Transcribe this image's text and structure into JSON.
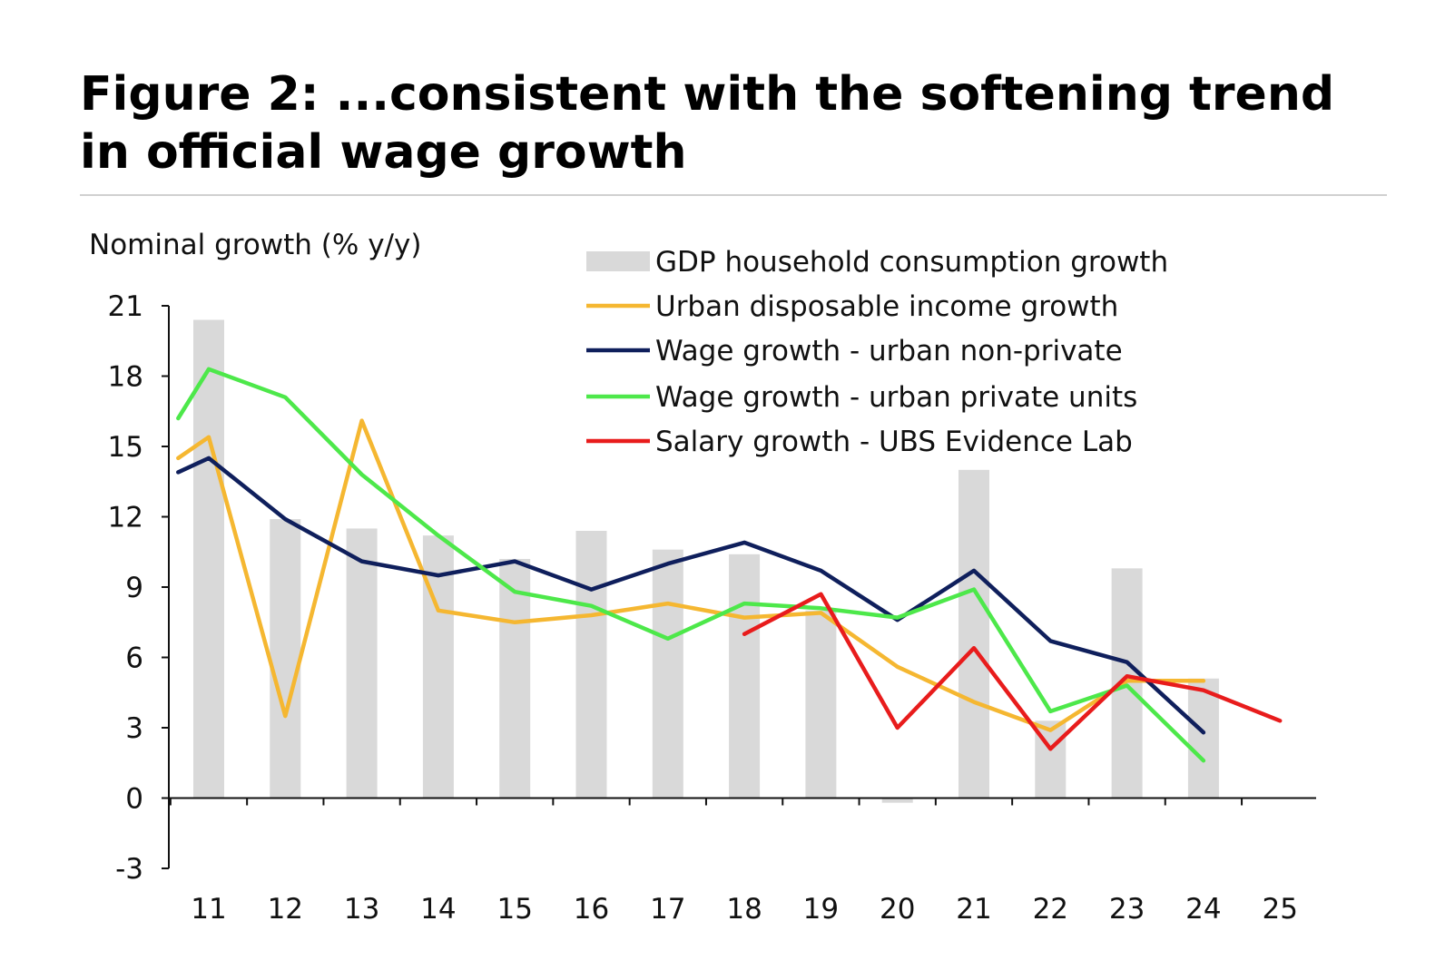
{
  "figure": {
    "title": "Figure 2: ...consistent with the softening trend in official wage growth"
  },
  "chart_data": {
    "type": "bar+line",
    "ylabel": "Nominal growth (% y/y)",
    "xlabel": "",
    "ylim": [
      -3,
      21
    ],
    "yticks": [
      -3,
      0,
      3,
      6,
      9,
      12,
      15,
      18,
      21
    ],
    "categories": [
      "11",
      "12",
      "13",
      "14",
      "15",
      "16",
      "17",
      "18",
      "19",
      "20",
      "21",
      "22",
      "23",
      "24",
      "25"
    ],
    "grid": false,
    "legend_position": "top-right",
    "bars": {
      "name": "GDP household consumption growth",
      "color": "#d9d9d9",
      "values": [
        20.4,
        11.9,
        11.5,
        11.2,
        10.2,
        11.4,
        10.6,
        10.4,
        8.0,
        -0.2,
        14.0,
        3.3,
        9.8,
        5.1,
        null
      ]
    },
    "series": [
      {
        "name": "Urban disposable income growth",
        "color": "#f5b731",
        "x": [
          10.6,
          11,
          12,
          13,
          14,
          15,
          16,
          17,
          18,
          19,
          20,
          21,
          22,
          23,
          24
        ],
        "values": [
          14.5,
          15.4,
          3.5,
          16.1,
          8.0,
          7.5,
          7.8,
          8.3,
          7.7,
          7.9,
          5.6,
          4.1,
          2.9,
          5.0,
          5.0
        ]
      },
      {
        "name": "Wage growth - urban non-private",
        "color": "#0f1f5c",
        "x": [
          10.6,
          11,
          12,
          13,
          14,
          15,
          16,
          17,
          18,
          19,
          20,
          21,
          22,
          23,
          24
        ],
        "values": [
          13.9,
          14.5,
          11.9,
          10.1,
          9.5,
          10.1,
          8.9,
          10.0,
          10.9,
          9.7,
          7.6,
          9.7,
          6.7,
          5.8,
          2.8
        ]
      },
      {
        "name": "Wage growth - urban private units",
        "color": "#4de84a",
        "x": [
          10.6,
          11,
          12,
          13,
          14,
          15,
          16,
          17,
          18,
          19,
          20,
          21,
          22,
          23,
          24
        ],
        "values": [
          16.2,
          18.3,
          17.1,
          13.8,
          11.2,
          8.8,
          8.2,
          6.8,
          8.3,
          8.1,
          7.7,
          8.9,
          3.7,
          4.8,
          1.6
        ]
      },
      {
        "name": "Salary growth - UBS Evidence Lab",
        "color": "#e81c1c",
        "x": [
          18,
          19,
          20,
          21,
          22,
          23,
          24,
          25
        ],
        "values": [
          7.0,
          8.7,
          3.0,
          6.4,
          2.1,
          5.2,
          4.6,
          3.3
        ]
      }
    ]
  }
}
